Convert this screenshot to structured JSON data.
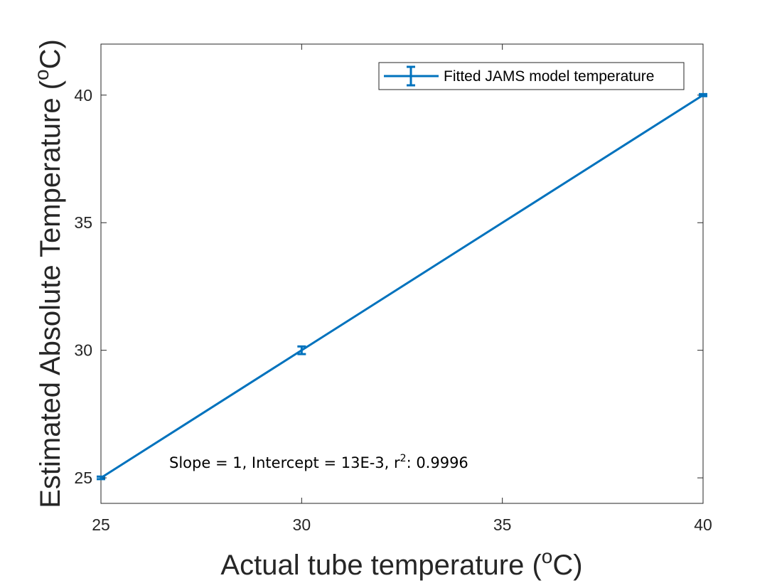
{
  "chart_data": {
    "type": "line",
    "xlabel": "Actual tube temperature (",
    "xlabel_sup": "o",
    "xlabel_unit": "C)",
    "ylabel": "Estimated Absolute Temperature (",
    "ylabel_sup": "o",
    "ylabel_unit": "C)",
    "xlim": [
      25,
      40
    ],
    "ylim": [
      24,
      42
    ],
    "xticks": [
      25,
      30,
      35,
      40
    ],
    "yticks": [
      25,
      30,
      35,
      40
    ],
    "grid": false,
    "legend_position": "top-right",
    "series": [
      {
        "name": "Fitted JAMS model temperature",
        "color": "#0072BD",
        "x": [
          25,
          30,
          40
        ],
        "y": [
          25,
          30,
          40
        ],
        "error": [
          0.05,
          0.15,
          0.04
        ]
      }
    ],
    "annotation": {
      "prefix": "Slope = 1, Intercept = 13E-3, r",
      "sup": "2",
      "suffix": ": 0.9996"
    }
  }
}
